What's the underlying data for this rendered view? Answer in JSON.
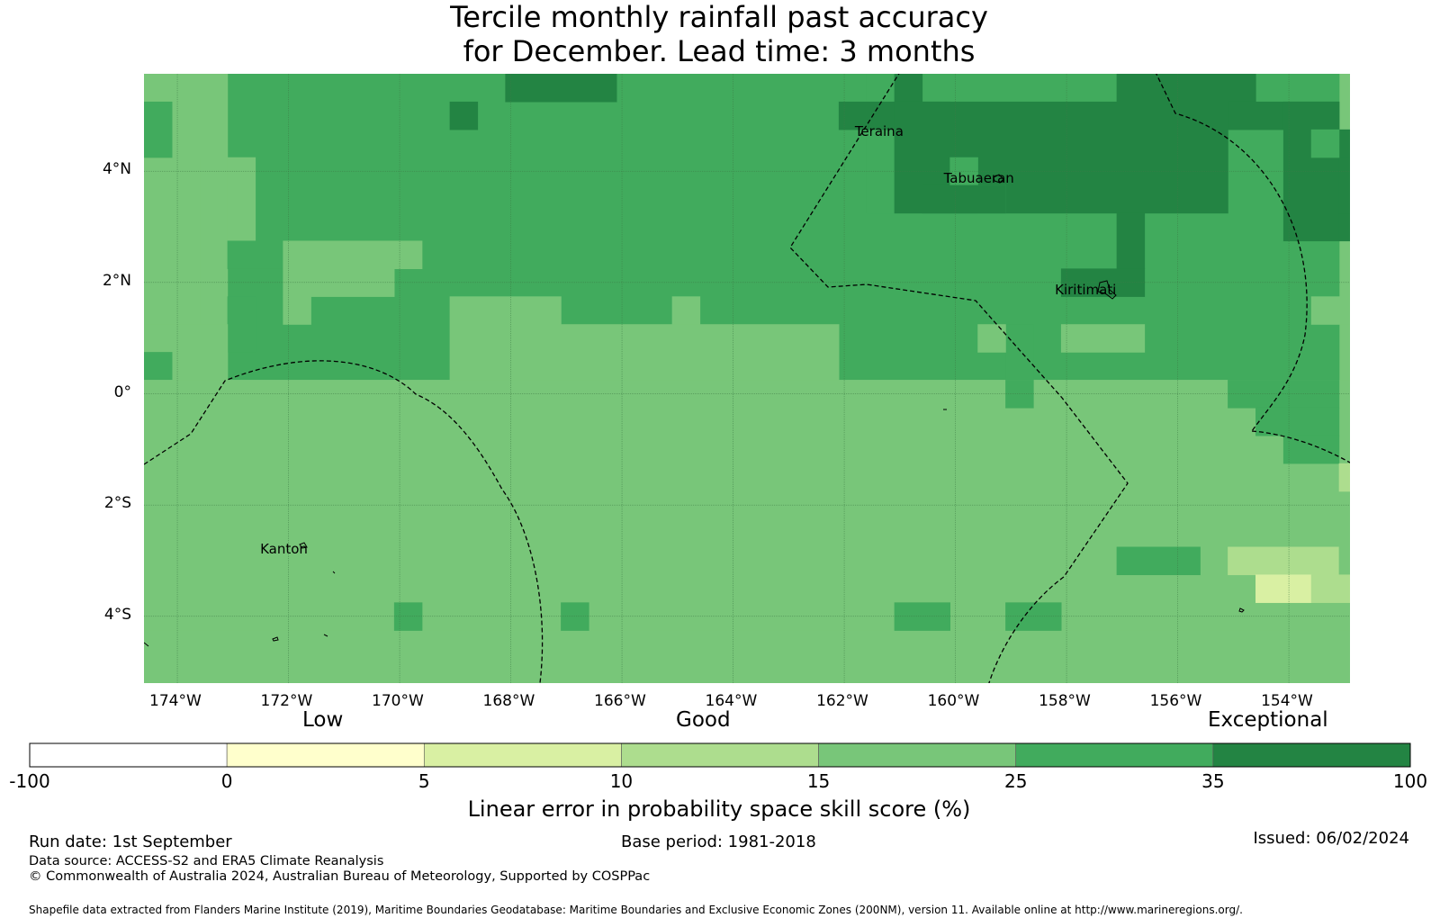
{
  "title": {
    "line1": "Tercile monthly rainfall past accuracy",
    "line2": "for December. Lead time: 3 months"
  },
  "map": {
    "lon_range": [
      -174.6,
      -152.9
    ],
    "lat_range": [
      -5.2,
      5.75
    ],
    "grid_step_deg": 2,
    "x_ticks": [
      "174°W",
      "172°W",
      "170°W",
      "168°W",
      "166°W",
      "164°W",
      "162°W",
      "160°W",
      "158°W",
      "156°W",
      "154°W"
    ],
    "y_ticks": [
      "4°N",
      "2°N",
      "0°",
      "2°S",
      "4°S"
    ],
    "places": [
      {
        "name": "Teraina",
        "lon": -161.0,
        "lat": 4.7
      },
      {
        "name": "Tabuaeran",
        "lon": -159.4,
        "lat": 3.85
      },
      {
        "name": "Kiritimati",
        "lon": -157.4,
        "lat": 1.85
      },
      {
        "name": "Kanton",
        "lon": -171.7,
        "lat": -2.8
      }
    ]
  },
  "legend": {
    "categories": [
      "Low",
      "Good",
      "Exceptional"
    ],
    "ticks": [
      "-100",
      "0",
      "5",
      "10",
      "15",
      "25",
      "35",
      "100"
    ],
    "colors": [
      "#ffffff",
      "#ffffcc",
      "#d9f0a3",
      "#addd8e",
      "#78c679",
      "#41ab5d",
      "#238443"
    ],
    "label": "Linear error in probability space skill score (%)"
  },
  "footer": {
    "run_date": "Run date: 1st September",
    "base_period": "Base period: 1981-2018",
    "issued": "Issued: 06/02/2024",
    "data_source": "Data source: ACCESS-S2 and ERA5 Climate Reanalysis",
    "copyright": "© Commonwealth of Australia 2024, Australian Bureau of Meteorology, Supported by COSPPac",
    "shapefile": "Shapefile data extracted from Flanders Marine Institute (2019), Maritime Boundaries Geodatabase: Maritime Boundaries and Exclusive Economic Zones (200NM), version 11. Available online at http://www.marineregions.org/."
  }
}
